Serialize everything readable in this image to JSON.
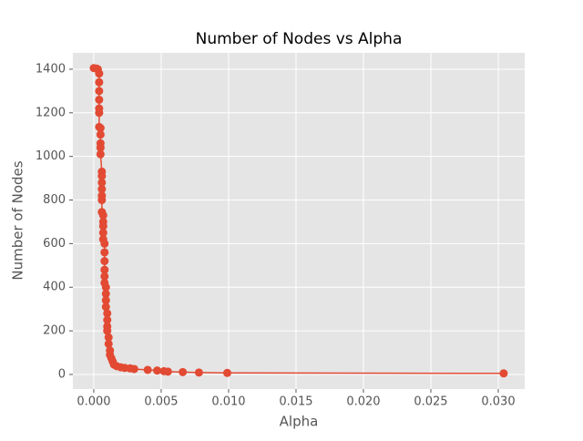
{
  "chart_data": {
    "type": "line",
    "title": "Number of Nodes vs Alpha",
    "xlabel": "Alpha",
    "ylabel": "Number of Nodes",
    "color": "#e24a33",
    "grid": true,
    "xlim": [
      -0.00155,
      0.03196
    ],
    "ylim": [
      -67,
      1475
    ],
    "xticks": [
      {
        "value": 0,
        "label": "0.000"
      },
      {
        "value": 0.005,
        "label": "0.005"
      },
      {
        "value": 0.01,
        "label": "0.010"
      },
      {
        "value": 0.015,
        "label": "0.015"
      },
      {
        "value": 0.02,
        "label": "0.020"
      },
      {
        "value": 0.025,
        "label": "0.025"
      },
      {
        "value": 0.03,
        "label": "0.030"
      }
    ],
    "yticks": [
      0,
      200,
      400,
      600,
      800,
      1000,
      1200,
      1400
    ],
    "x": [
      0.0,
      0.0002,
      0.0003,
      0.0004,
      0.0004,
      0.0004,
      0.0004,
      0.0004,
      0.0004,
      0.0004,
      0.0005,
      0.0005,
      0.0005,
      0.0005,
      0.0005,
      0.0006,
      0.0006,
      0.0006,
      0.0006,
      0.0006,
      0.0006,
      0.0006,
      0.0007,
      0.0007,
      0.0007,
      0.0007,
      0.0007,
      0.0008,
      0.0008,
      0.0008,
      0.0008,
      0.0008,
      0.0008,
      0.0009,
      0.0009,
      0.0009,
      0.0009,
      0.001,
      0.001,
      0.001,
      0.001,
      0.0011,
      0.0011,
      0.0012,
      0.0012,
      0.0013,
      0.0014,
      0.0015,
      0.0017,
      0.002,
      0.0023,
      0.0027,
      0.003,
      0.004,
      0.0047,
      0.0052,
      0.0055,
      0.0066,
      0.0078,
      0.0099,
      0.0304
    ],
    "values": [
      1405,
      1403,
      1400,
      1380,
      1340,
      1300,
      1260,
      1220,
      1200,
      1135,
      1130,
      1100,
      1060,
      1040,
      1010,
      930,
      910,
      880,
      850,
      820,
      800,
      745,
      730,
      700,
      680,
      650,
      620,
      600,
      560,
      520,
      480,
      450,
      420,
      400,
      370,
      340,
      310,
      280,
      250,
      220,
      200,
      170,
      140,
      110,
      90,
      75,
      60,
      45,
      38,
      33,
      30,
      28,
      25,
      21,
      18,
      15,
      13,
      11,
      9,
      7,
      5
    ]
  }
}
